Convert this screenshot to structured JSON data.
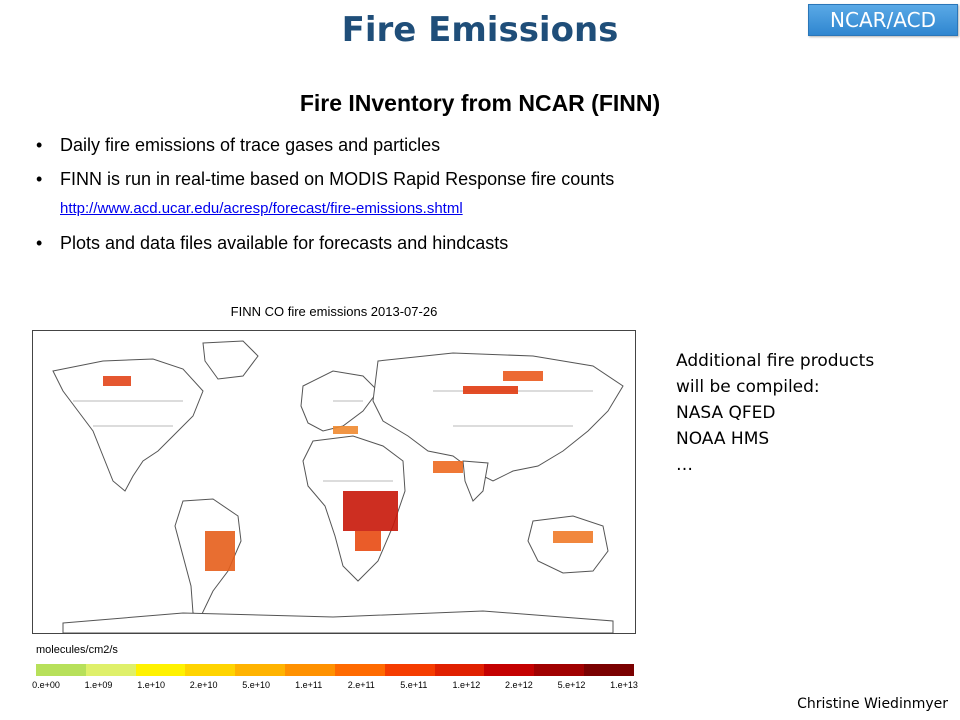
{
  "slide": {
    "title": "Fire Emissions",
    "badge": "NCAR/ACD",
    "subtitle": "Fire INventory from NCAR (FINN)",
    "bullets": [
      "Daily fire emissions of trace gases and particles",
      "FINN is run in real-time based on MODIS Rapid Response fire counts",
      "Plots and data files available for forecasts and hindcasts"
    ],
    "link": "http://www.acd.ucar.edu/acresp/forecast/fire-emissions.shtml",
    "side_note": [
      "Additional fire products",
      "will be compiled:",
      "NASA QFED",
      "NOAA HMS",
      "…"
    ],
    "author": "Christine Wiedinmyer"
  },
  "map": {
    "title": "FINN CO fire emissions 2013-07-26",
    "units": "molecules/cm2/s",
    "colorbar_ticks": [
      "0.e+00",
      "1.e+09",
      "1.e+10",
      "2.e+10",
      "5.e+10",
      "1.e+11",
      "2.e+11",
      "5.e+11",
      "1.e+12",
      "2.e+12",
      "5.e+12",
      "1.e+13"
    ],
    "colorbar_colors": [
      "#b7e05a",
      "#dff06a",
      "#fff200",
      "#ffd400",
      "#ffb300",
      "#ff9100",
      "#ff6a00",
      "#f53c00",
      "#e02000",
      "#c40000",
      "#a00000",
      "#7a0000"
    ],
    "land_color": "#ffffff",
    "outline_color": "#555555"
  }
}
